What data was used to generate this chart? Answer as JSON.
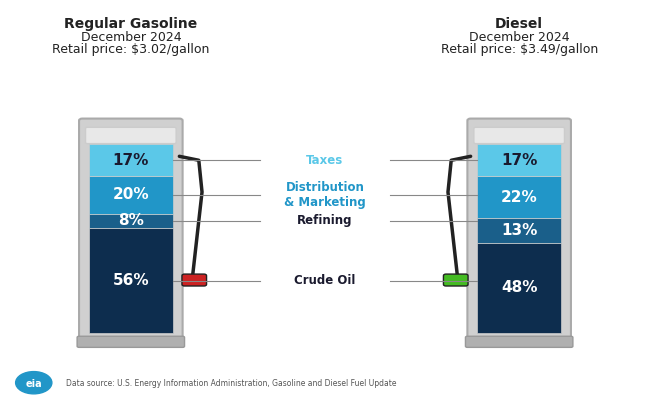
{
  "gasoline_title": "Regular Gasoline",
  "gasoline_subtitle": "December 2024",
  "gasoline_price": "Retail price: $3.02/gallon",
  "diesel_title": "Diesel",
  "diesel_subtitle": "December 2024",
  "diesel_price": "Retail price: $3.49/gallon",
  "gasoline_values": [
    56,
    8,
    20,
    17
  ],
  "diesel_values": [
    48,
    13,
    22,
    17
  ],
  "categories": [
    "Crude Oil",
    "Refining",
    "Distribution\n& Marketing",
    "Taxes"
  ],
  "colors": [
    "#0d2d4e",
    "#1a5f8a",
    "#2196c8",
    "#5bc8e8"
  ],
  "label_colors": [
    "#ffffff",
    "#ffffff",
    "#ffffff",
    "#1a1a2e"
  ],
  "category_colors": [
    "#1a1a2e",
    "#1a1a2e",
    "#2196c8",
    "#5bc8e8"
  ],
  "background_color": "#ffffff",
  "pump_body_color": "#d0d0d0",
  "pump_screen_color": "#e8e8e8",
  "pump_base_color": "#b0b0b0",
  "datasource": "Data source: U.S. Energy Information Administration, Gasoline and Diesel Fuel Update"
}
